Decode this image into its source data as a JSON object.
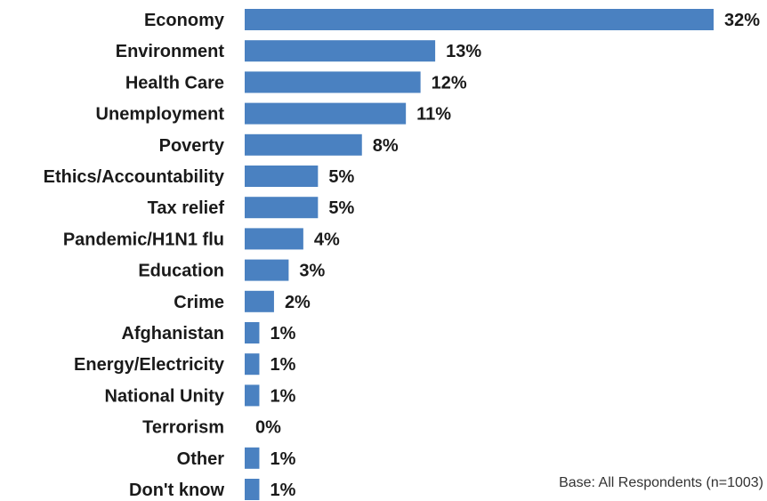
{
  "chart_data": {
    "type": "bar",
    "orientation": "horizontal",
    "categories": [
      "Economy",
      "Environment",
      "Health Care",
      "Unemployment",
      "Poverty",
      "Ethics/Accountability",
      "Tax relief",
      "Pandemic/H1N1 flu",
      "Education",
      "Crime",
      "Afghanistan",
      "Energy/Electricity",
      "National Unity",
      "Terrorism",
      "Other",
      "Don't know"
    ],
    "values": [
      32,
      13,
      12,
      11,
      8,
      5,
      5,
      4,
      3,
      2,
      1,
      1,
      1,
      0,
      1,
      1
    ],
    "value_labels": [
      "32%",
      "13%",
      "12%",
      "11%",
      "8%",
      "5%",
      "5%",
      "4%",
      "3%",
      "2%",
      "1%",
      "1%",
      "1%",
      "0%",
      "1%",
      "1%"
    ],
    "title": "",
    "xlabel": "",
    "ylabel": "",
    "xlim": [
      0,
      32
    ],
    "grid": false,
    "legend": "none",
    "bar_color": "#4a81c1"
  },
  "footnote": "Base:  All Respondents (n=1003)"
}
